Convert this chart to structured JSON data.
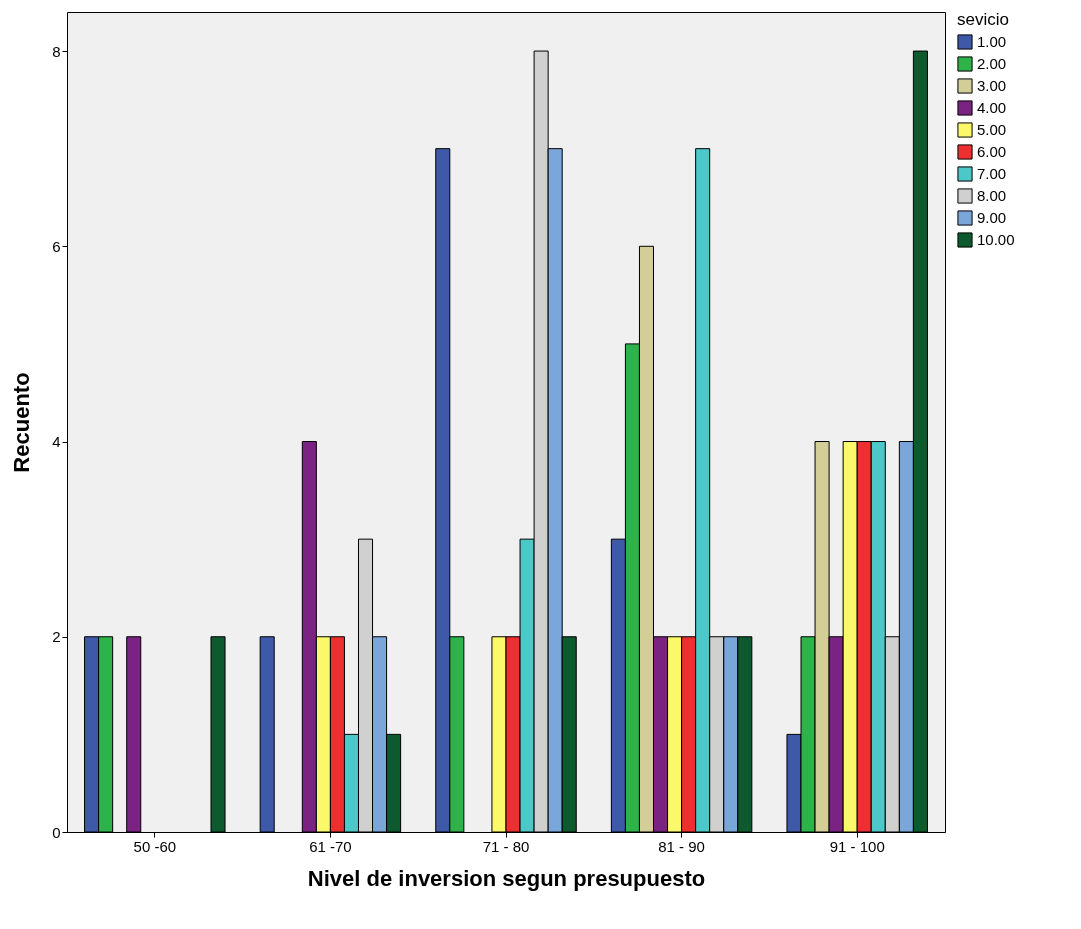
{
  "chart_data": {
    "type": "bar",
    "xlabel": "Nivel de inversion segun presupuesto",
    "ylabel": "Recuento",
    "legend_title": "sevicio",
    "categories": [
      "50 -60",
      "61 -70",
      "71 - 80",
      "81 - 90",
      "91 - 100"
    ],
    "series": [
      {
        "name": "1.00",
        "color": "#3e59a8",
        "values": [
          2,
          2,
          7,
          3,
          1
        ]
      },
      {
        "name": "2.00",
        "color": "#2db34a",
        "values": [
          2,
          null,
          2,
          5,
          2
        ]
      },
      {
        "name": "3.00",
        "color": "#d3ce97",
        "values": [
          null,
          null,
          null,
          6,
          4
        ]
      },
      {
        "name": "4.00",
        "color": "#7b2382",
        "values": [
          2,
          4,
          null,
          2,
          2
        ]
      },
      {
        "name": "5.00",
        "color": "#fbf96a",
        "values": [
          null,
          2,
          2,
          2,
          4
        ]
      },
      {
        "name": "6.00",
        "color": "#ee2f2f",
        "values": [
          null,
          2,
          2,
          2,
          4
        ]
      },
      {
        "name": "7.00",
        "color": "#4cc8c8",
        "values": [
          null,
          1,
          3,
          7,
          4
        ]
      },
      {
        "name": "8.00",
        "color": "#d0d0d0",
        "values": [
          null,
          3,
          8,
          2,
          2
        ]
      },
      {
        "name": "9.00",
        "color": "#7aa6da",
        "values": [
          null,
          2,
          7,
          2,
          4
        ]
      },
      {
        "name": "10.00",
        "color": "#0d5a2e",
        "values": [
          2,
          1,
          2,
          2,
          8
        ]
      }
    ],
    "ylim": [
      0,
      8.4
    ],
    "yticks": [
      0,
      2,
      4,
      6,
      8
    ],
    "grid": false,
    "legend": "top right"
  }
}
